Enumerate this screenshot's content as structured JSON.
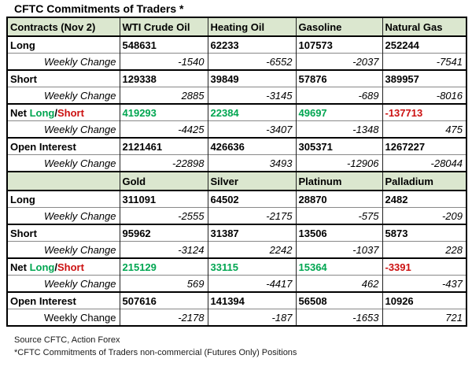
{
  "title": "CFTC Commitments of Traders *",
  "colors": {
    "positive_green": "#00a651",
    "negative_red": "#cc1111",
    "header_bg": "#dbe7cf"
  },
  "net_label_parts": [
    {
      "text": "Net ",
      "color": "#000000"
    },
    {
      "text": "Long",
      "color": "#00a651"
    },
    {
      "text": "/",
      "color": "#000000"
    },
    {
      "text": "Short",
      "color": "#cc1111"
    }
  ],
  "chart_data": {
    "type": "table",
    "title": "CFTC Commitments of Traders *",
    "sections": [
      {
        "columns": [
          "Contracts (Nov 2)",
          "WTI Crude Oil",
          "Heating Oil",
          "Gasoline",
          "Natural Gas"
        ],
        "rows": [
          {
            "label": "Long",
            "kind": "metric",
            "values": [
              "548631",
              "62233",
              "107573",
              "252244"
            ]
          },
          {
            "label": "Weekly Change",
            "kind": "change",
            "values": [
              "-1540",
              "-6552",
              "-2037",
              "-7541"
            ]
          },
          {
            "label": "Short",
            "kind": "metric",
            "values": [
              "129338",
              "39849",
              "57876",
              "389957"
            ]
          },
          {
            "label": "Weekly Change",
            "kind": "change",
            "values": [
              "2885",
              "-3145",
              "-689",
              "-8016"
            ]
          },
          {
            "label": "Net Long/Short",
            "kind": "net",
            "values": [
              "419293",
              "22384",
              "49697",
              "-137713"
            ]
          },
          {
            "label": "Weekly Change",
            "kind": "change",
            "values": [
              "-4425",
              "-3407",
              "-1348",
              "475"
            ]
          },
          {
            "label": "Open Interest",
            "kind": "metric",
            "values": [
              "2121461",
              "426636",
              "305371",
              "1267227"
            ]
          },
          {
            "label": "Weekly Change",
            "kind": "change",
            "values": [
              "-22898",
              "3493",
              "-12906",
              "-28044"
            ]
          }
        ]
      },
      {
        "columns": [
          "",
          "Gold",
          "Silver",
          "Platinum",
          "Palladium"
        ],
        "rows": [
          {
            "label": "Long",
            "kind": "metric",
            "values": [
              "311091",
              "64502",
              "28870",
              "2482"
            ]
          },
          {
            "label": "Weekly Change",
            "kind": "change",
            "values": [
              "-2555",
              "-2175",
              "-575",
              "-209"
            ]
          },
          {
            "label": "Short",
            "kind": "metric",
            "values": [
              "95962",
              "31387",
              "13506",
              "5873"
            ]
          },
          {
            "label": "Weekly Change",
            "kind": "change",
            "values": [
              "-3124",
              "2242",
              "-1037",
              "228"
            ]
          },
          {
            "label": "Net Long/Short",
            "kind": "net",
            "values": [
              "215129",
              "33115",
              "15364",
              "-3391"
            ]
          },
          {
            "label": "Weekly Change",
            "kind": "change",
            "values": [
              "569",
              "-4417",
              "462",
              "-437"
            ]
          },
          {
            "label": "Open Interest",
            "kind": "metric",
            "values": [
              "507616",
              "141394",
              "56508",
              "10926"
            ]
          },
          {
            "label": "Weekly Change",
            "kind": "change",
            "values": [
              "-2178",
              "-187",
              "-1653",
              "721"
            ],
            "upright_label": true
          }
        ]
      }
    ]
  },
  "footer": {
    "source": "Source CFTC, Action Forex",
    "note": "*CFTC Commitments of Traders non-commercial (Futures Only) Positions"
  }
}
